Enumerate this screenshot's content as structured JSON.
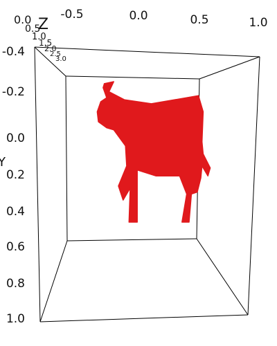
{
  "chart_data": {
    "type": "scatter",
    "title": "",
    "xlabel": "",
    "ylabel": "Y",
    "zlabel": "Z",
    "x_ticks": [
      "-0.5",
      "0.0",
      "0.5",
      "1.0"
    ],
    "y_ticks": [
      "-0.4",
      "-0.2",
      "0.0",
      "0.2",
      "0.4",
      "0.6",
      "0.8",
      "1.0"
    ],
    "z_ticks": [
      "0.0",
      "0.5",
      "1.0",
      "1.5",
      "2.0",
      "2.5",
      "3.0"
    ],
    "xlim": [
      -0.6,
      1.0
    ],
    "ylim": [
      -0.4,
      1.0
    ],
    "zlim": [
      0.0,
      3.0
    ],
    "grid": false,
    "marker_color": "#e0191c",
    "series": [
      {
        "shape": "cow",
        "points_description_note": "",
        "outline": [
          [
            -0.32,
            -0.29
          ],
          [
            -0.24,
            -0.3
          ],
          [
            -0.28,
            -0.25
          ],
          [
            -0.15,
            -0.21
          ],
          [
            0.08,
            -0.19
          ],
          [
            0.48,
            -0.23
          ],
          [
            0.52,
            -0.15
          ],
          [
            0.51,
            0.0
          ],
          [
            0.52,
            0.06
          ],
          [
            0.58,
            0.13
          ],
          [
            0.56,
            0.17
          ],
          [
            0.51,
            0.12
          ],
          [
            0.5,
            0.18
          ],
          [
            0.47,
            0.25
          ],
          [
            0.42,
            0.26
          ],
          [
            0.4,
            0.4
          ],
          [
            0.34,
            0.4
          ],
          [
            0.38,
            0.26
          ],
          [
            0.32,
            0.17
          ],
          [
            0.12,
            0.17
          ],
          [
            -0.04,
            0.14
          ],
          [
            -0.04,
            0.4
          ],
          [
            -0.11,
            0.4
          ],
          [
            -0.1,
            0.23
          ],
          [
            -0.16,
            0.29
          ],
          [
            -0.2,
            0.22
          ],
          [
            -0.13,
            0.12
          ],
          [
            -0.14,
            0.02
          ],
          [
            -0.24,
            -0.06
          ],
          [
            -0.3,
            -0.07
          ],
          [
            -0.37,
            -0.1
          ],
          [
            -0.38,
            -0.15
          ],
          [
            -0.35,
            -0.2
          ],
          [
            -0.3,
            -0.22
          ],
          [
            -0.33,
            -0.27
          ]
        ]
      }
    ]
  }
}
